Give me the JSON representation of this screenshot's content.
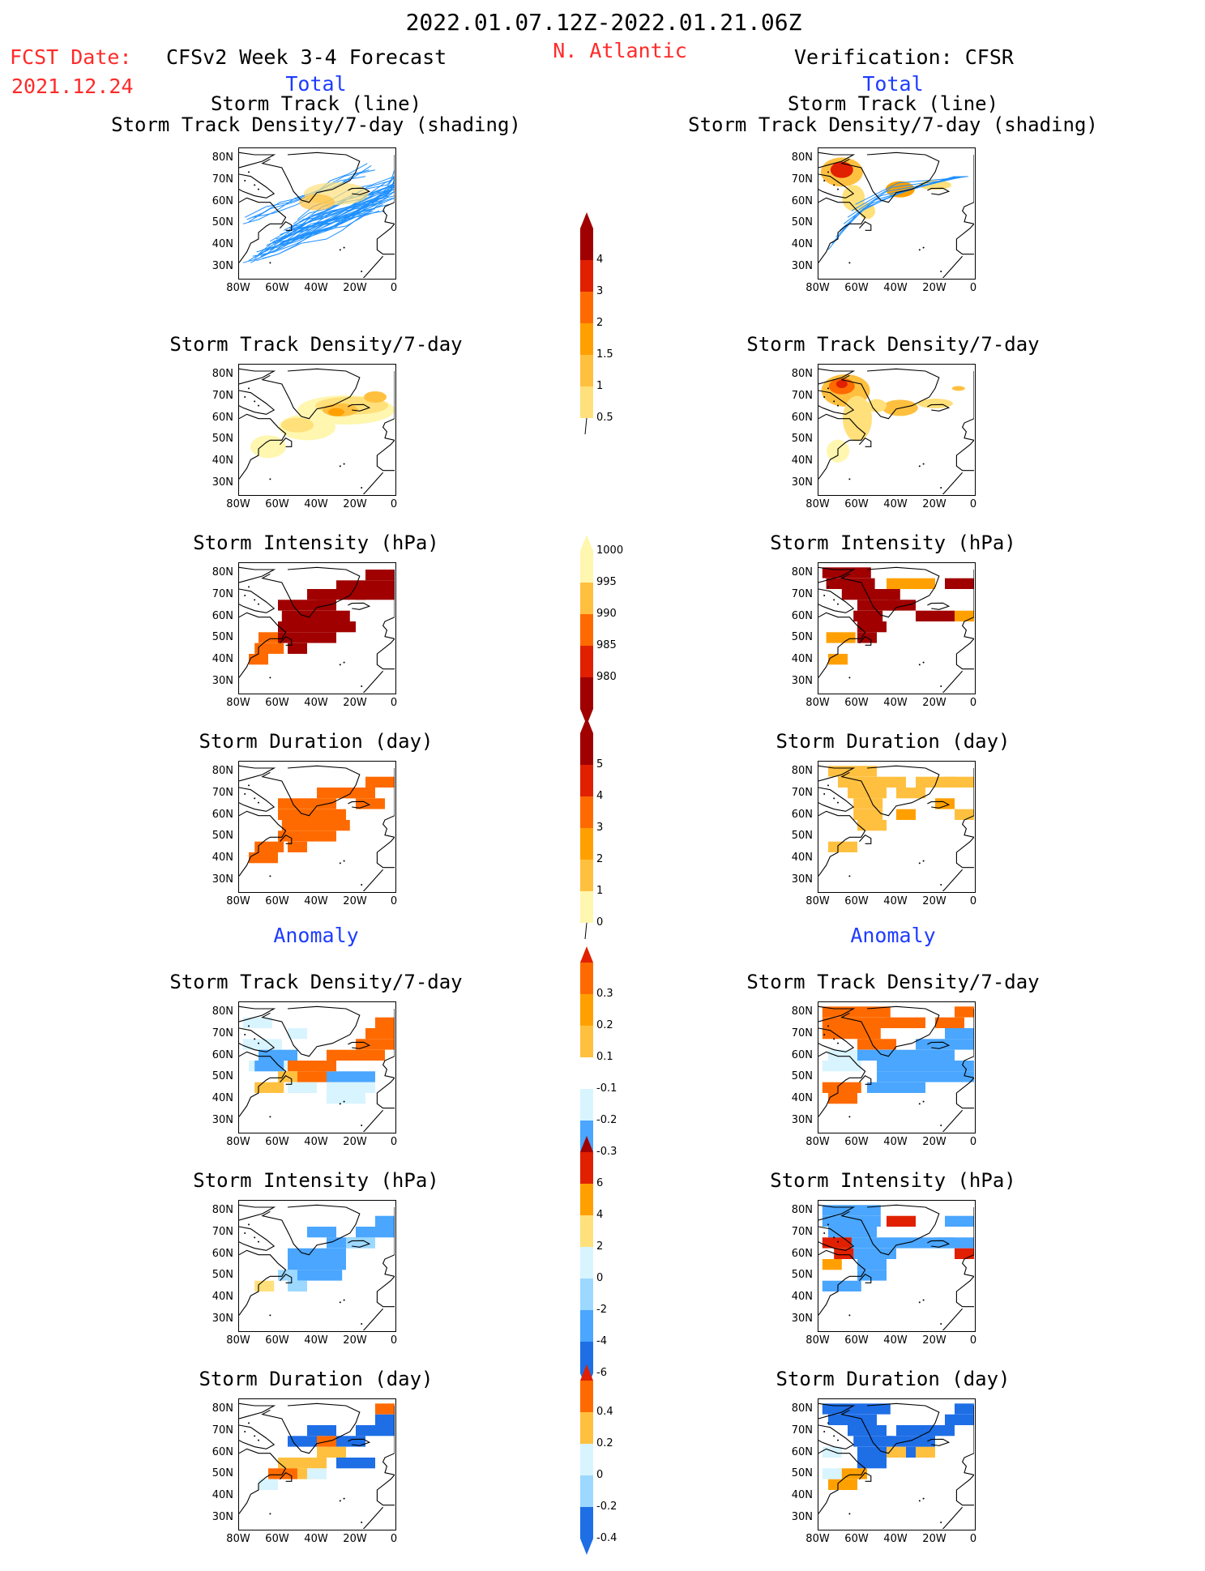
{
  "header": {
    "date_range": "2022.01.07.12Z-2022.01.21.06Z",
    "region": "N. Atlantic",
    "fcst_label": "FCST Date:",
    "fcst_date": "2021.12.24",
    "left_title": "CFSv2 Week 3-4 Forecast",
    "right_title": "Verification: CFSR"
  },
  "sections": {
    "total": "Total",
    "anomaly": "Anomaly"
  },
  "panel_titles": {
    "track_line": "Storm Track (line)",
    "track_shading": "Storm Track Density/7-day (shading)",
    "density": "Storm Track Density/7-day",
    "intensity": "Storm Intensity (hPa)",
    "duration": "Storm Duration (day)"
  },
  "axes": {
    "lat_labels": [
      "80N",
      "70N",
      "60N",
      "50N",
      "40N",
      "30N"
    ],
    "lon_labels": [
      "80W",
      "60W",
      "40W",
      "20W",
      "0"
    ]
  },
  "colorbars": {
    "density_total": [
      "4",
      "3",
      "2",
      "1.5",
      "1",
      "0.5"
    ],
    "intensity_total": [
      "1000",
      "995",
      "990",
      "985",
      "980"
    ],
    "duration_total": [
      "5",
      "4",
      "3",
      "2",
      "1",
      "0"
    ],
    "density_anom": [
      "0.3",
      "0.2",
      "0.1",
      "-0.1",
      "-0.2",
      "-0.3"
    ],
    "intensity_anom": [
      "6",
      "4",
      "2",
      "0",
      "-2",
      "-4",
      "-6"
    ],
    "duration_anom": [
      "0.4",
      "0.2",
      "0",
      "-0.2",
      "-0.4"
    ]
  },
  "colors": {
    "header_red": "#ff2a2a",
    "section_blue": "#1e3cff",
    "track_line": "#1e90ff",
    "warm": [
      "#fff6b0",
      "#ffe07a",
      "#ffc040",
      "#ffa000",
      "#ff6a00",
      "#e02000",
      "#a00000"
    ],
    "cool": [
      "#d8f4ff",
      "#9cd8ff",
      "#4aa6ff",
      "#1e6ee6",
      "#0a46c8"
    ]
  }
}
